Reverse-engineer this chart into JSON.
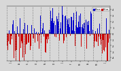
{
  "background_color": "#d8d8d8",
  "plot_bg_color": "#d8d8d8",
  "bar_color_above": "#0000cc",
  "bar_color_below": "#cc0000",
  "grid_color": "#888888",
  "ylim": [
    -45,
    45
  ],
  "ytick_values": [
    40,
    30,
    20,
    10,
    0,
    -10,
    -20,
    -30,
    -40
  ],
  "ytick_labels": [
    "4",
    "3",
    "2",
    "1",
    "0",
    "-1",
    "-2",
    "-3",
    "-4"
  ],
  "n_points": 365,
  "legend_above_label": "Above",
  "legend_below_label": "Below",
  "seed": 7,
  "seasonal_amplitude": 15,
  "noise_scale": 18,
  "phase_shift": 0.6
}
